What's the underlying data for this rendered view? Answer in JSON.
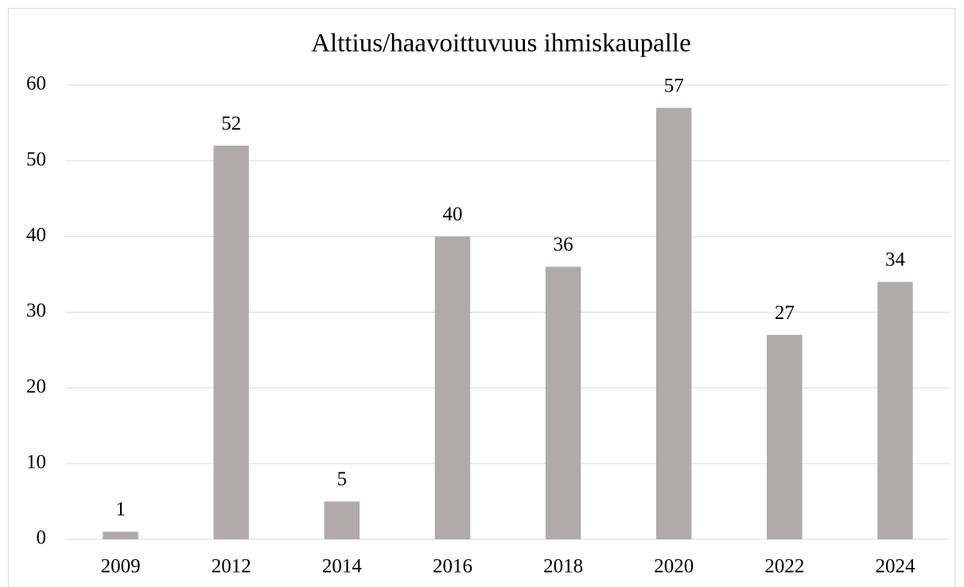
{
  "chart_data": {
    "type": "bar",
    "title": "Alttius/haavoittuvuus ihmiskaupalle",
    "categories": [
      "2009",
      "2012",
      "2014",
      "2016",
      "2018",
      "2020",
      "2022",
      "2024"
    ],
    "values": [
      1,
      52,
      5,
      40,
      36,
      57,
      27,
      34
    ],
    "color": "#afabab",
    "ylim": [
      0,
      60
    ],
    "yticks": [
      0,
      10,
      20,
      30,
      40,
      50,
      60
    ],
    "grid": true
  }
}
